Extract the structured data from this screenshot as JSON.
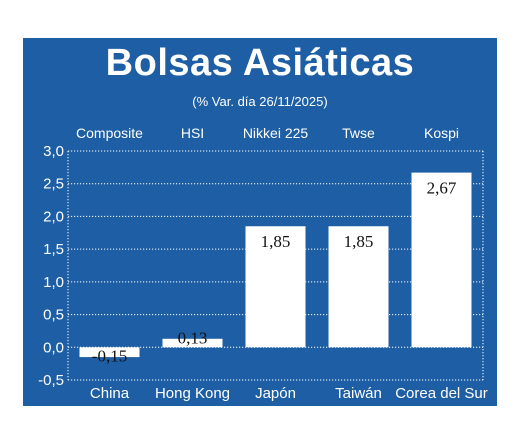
{
  "title": "Bolsas Asiáticas",
  "subtitle": "(% Var. día  26/11/2025)",
  "colors": {
    "background": "#1d5ea4",
    "bars": "#ffffff",
    "grid": "#ffffff"
  },
  "chart_data": {
    "type": "bar",
    "title": "Bolsas Asiáticas",
    "subtitle": "(% Var. día  26/11/2025)",
    "index_names": [
      "Composite",
      "HSI",
      "Nikkei 225",
      "Twse",
      "Kospi"
    ],
    "categories": [
      "China",
      "Hong Kong",
      "Japón",
      "Taiwán",
      "Corea del Sur"
    ],
    "values": [
      -0.15,
      0.13,
      1.85,
      1.85,
      2.67
    ],
    "value_labels": [
      "-0,15",
      "0,13",
      "1,85",
      "1,85",
      "2,67"
    ],
    "yticks": [
      -0.5,
      0.0,
      0.5,
      1.0,
      1.5,
      2.0,
      2.5,
      3.0
    ],
    "ytick_labels": [
      "-0,5",
      "0,0",
      "0,5",
      "1,0",
      "1,5",
      "2,0",
      "2,5",
      "3,0"
    ],
    "ylim": [
      -0.5,
      3.0
    ],
    "grid": true,
    "xlabel": "",
    "ylabel": ""
  }
}
